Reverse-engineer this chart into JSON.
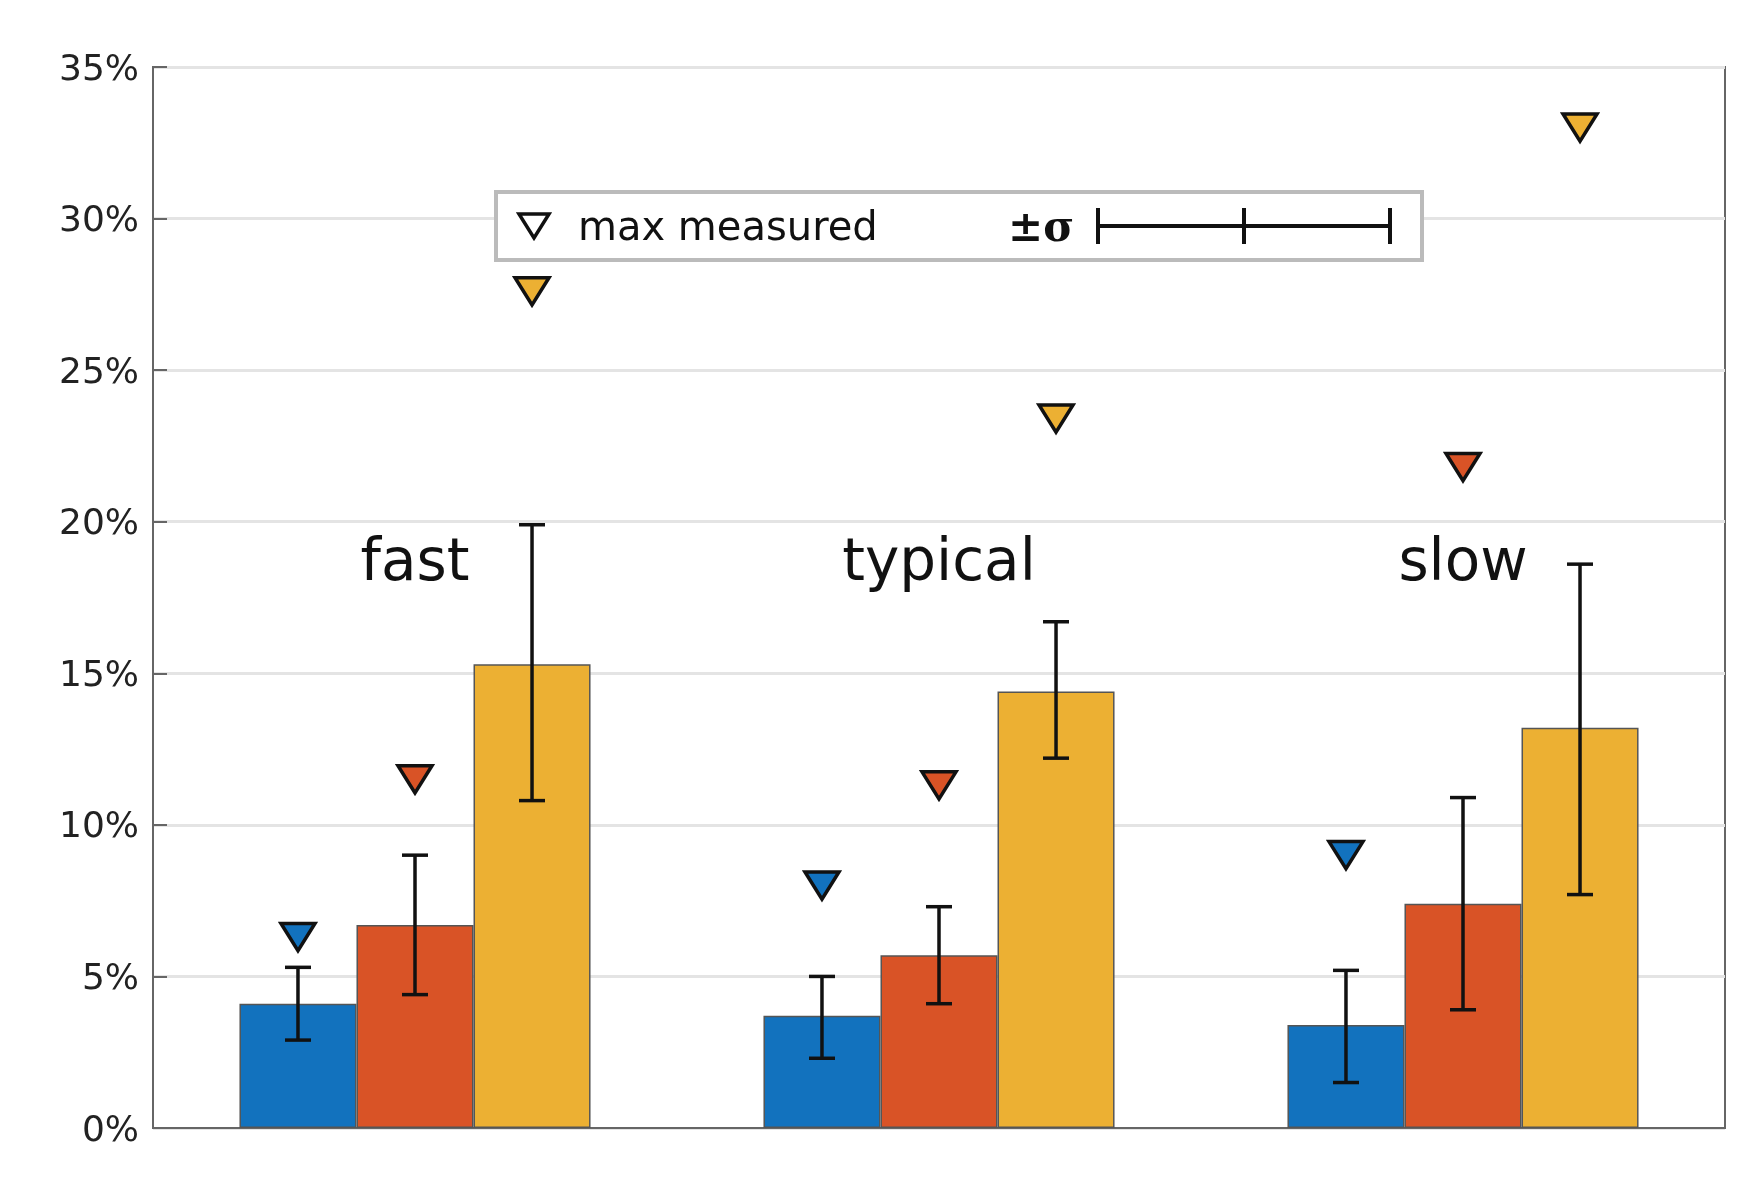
{
  "chart_data": {
    "type": "bar",
    "categories": [
      "fast",
      "typical",
      "slow"
    ],
    "series": [
      {
        "color": "#1272be",
        "values": [
          4.1,
          3.7,
          3.4
        ],
        "errors": [
          [
            2.9,
            5.3
          ],
          [
            2.3,
            5.0
          ],
          [
            1.5,
            5.2
          ]
        ]
      },
      {
        "color": "#d95326",
        "values": [
          6.7,
          5.7,
          7.4
        ],
        "errors": [
          [
            4.4,
            9.0
          ],
          [
            4.1,
            7.3
          ],
          [
            3.9,
            10.9
          ]
        ]
      },
      {
        "color": "#ecb033",
        "values": [
          15.3,
          14.4,
          13.2
        ],
        "errors": [
          [
            10.8,
            19.9
          ],
          [
            12.2,
            16.7
          ],
          [
            7.7,
            18.6
          ]
        ]
      },
      {
        "type": "scatter",
        "name": "max measured",
        "color": "#1272be",
        "x": [
          "fast",
          "typical",
          "slow"
        ],
        "values": [
          6.3,
          8.0,
          9.0
        ]
      },
      {
        "type": "scatter",
        "color": "#d95326",
        "x": [
          "fast",
          "typical",
          "slow"
        ],
        "values": [
          11.5,
          11.3,
          21.8
        ]
      },
      {
        "type": "scatter",
        "color": "#ecb033",
        "x": [
          "fast",
          "typical",
          "slow"
        ],
        "values": [
          27.6,
          23.4,
          33.0
        ]
      }
    ],
    "ylim": [
      0,
      35
    ],
    "yticks": [
      {
        "value": 0,
        "label": "0%"
      },
      {
        "value": 5,
        "label": "5%"
      },
      {
        "value": 10,
        "label": "10%"
      },
      {
        "value": 15,
        "label": "15%"
      },
      {
        "value": 20,
        "label": "20%"
      },
      {
        "value": 25,
        "label": "25%"
      },
      {
        "value": 30,
        "label": "30%"
      },
      {
        "value": 35,
        "label": "35%"
      }
    ],
    "grid": "y",
    "legend": "top",
    "marker": "triangle",
    "annotations": [
      "±σ"
    ]
  }
}
